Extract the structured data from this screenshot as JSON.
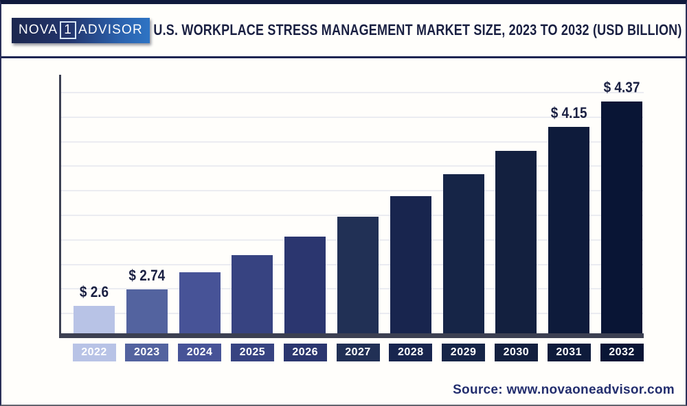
{
  "header": {
    "logo": {
      "part1": "NOVA",
      "part2": "1",
      "part3": "ADVISOR"
    },
    "title": "U.S. WORKPLACE STRESS MANAGEMENT MARKET SIZE, 2023 TO 2032 (USD BILLION)"
  },
  "chart_data": {
    "type": "bar",
    "title": "U.S. Workplace Stress Management Market Size, 2023 to 2032 (USD Billion)",
    "unit": "USD Billion",
    "categories": [
      "2022",
      "2023",
      "2024",
      "2025",
      "2026",
      "2027",
      "2028",
      "2029",
      "2030",
      "2031",
      "2032"
    ],
    "values": [
      2.6,
      2.74,
      2.89,
      3.04,
      3.2,
      3.37,
      3.55,
      3.74,
      3.94,
      4.15,
      4.37
    ],
    "labels": [
      "$ 2.6",
      "$ 2.74",
      null,
      null,
      null,
      null,
      null,
      null,
      null,
      "$ 4.15",
      "$ 4.37"
    ],
    "bar_colors": [
      "#b8c3e6",
      "#53639f",
      "#475397",
      "#374381",
      "#2b366f",
      "#213055",
      "#18254e",
      "#162547",
      "#13203f",
      "#0e1b3b",
      "#091535"
    ],
    "layout_hints": {
      "axis_baseline_value": 2.36,
      "axis_top_value": 4.6,
      "gridlines": 10,
      "grid_on": true,
      "legend": "none",
      "grid_color": "#ebecf1",
      "axis_color": "#3c4052",
      "label_color": "#1a2042"
    }
  },
  "footer": {
    "source": "Source: www.novaoneadvisor.com"
  }
}
